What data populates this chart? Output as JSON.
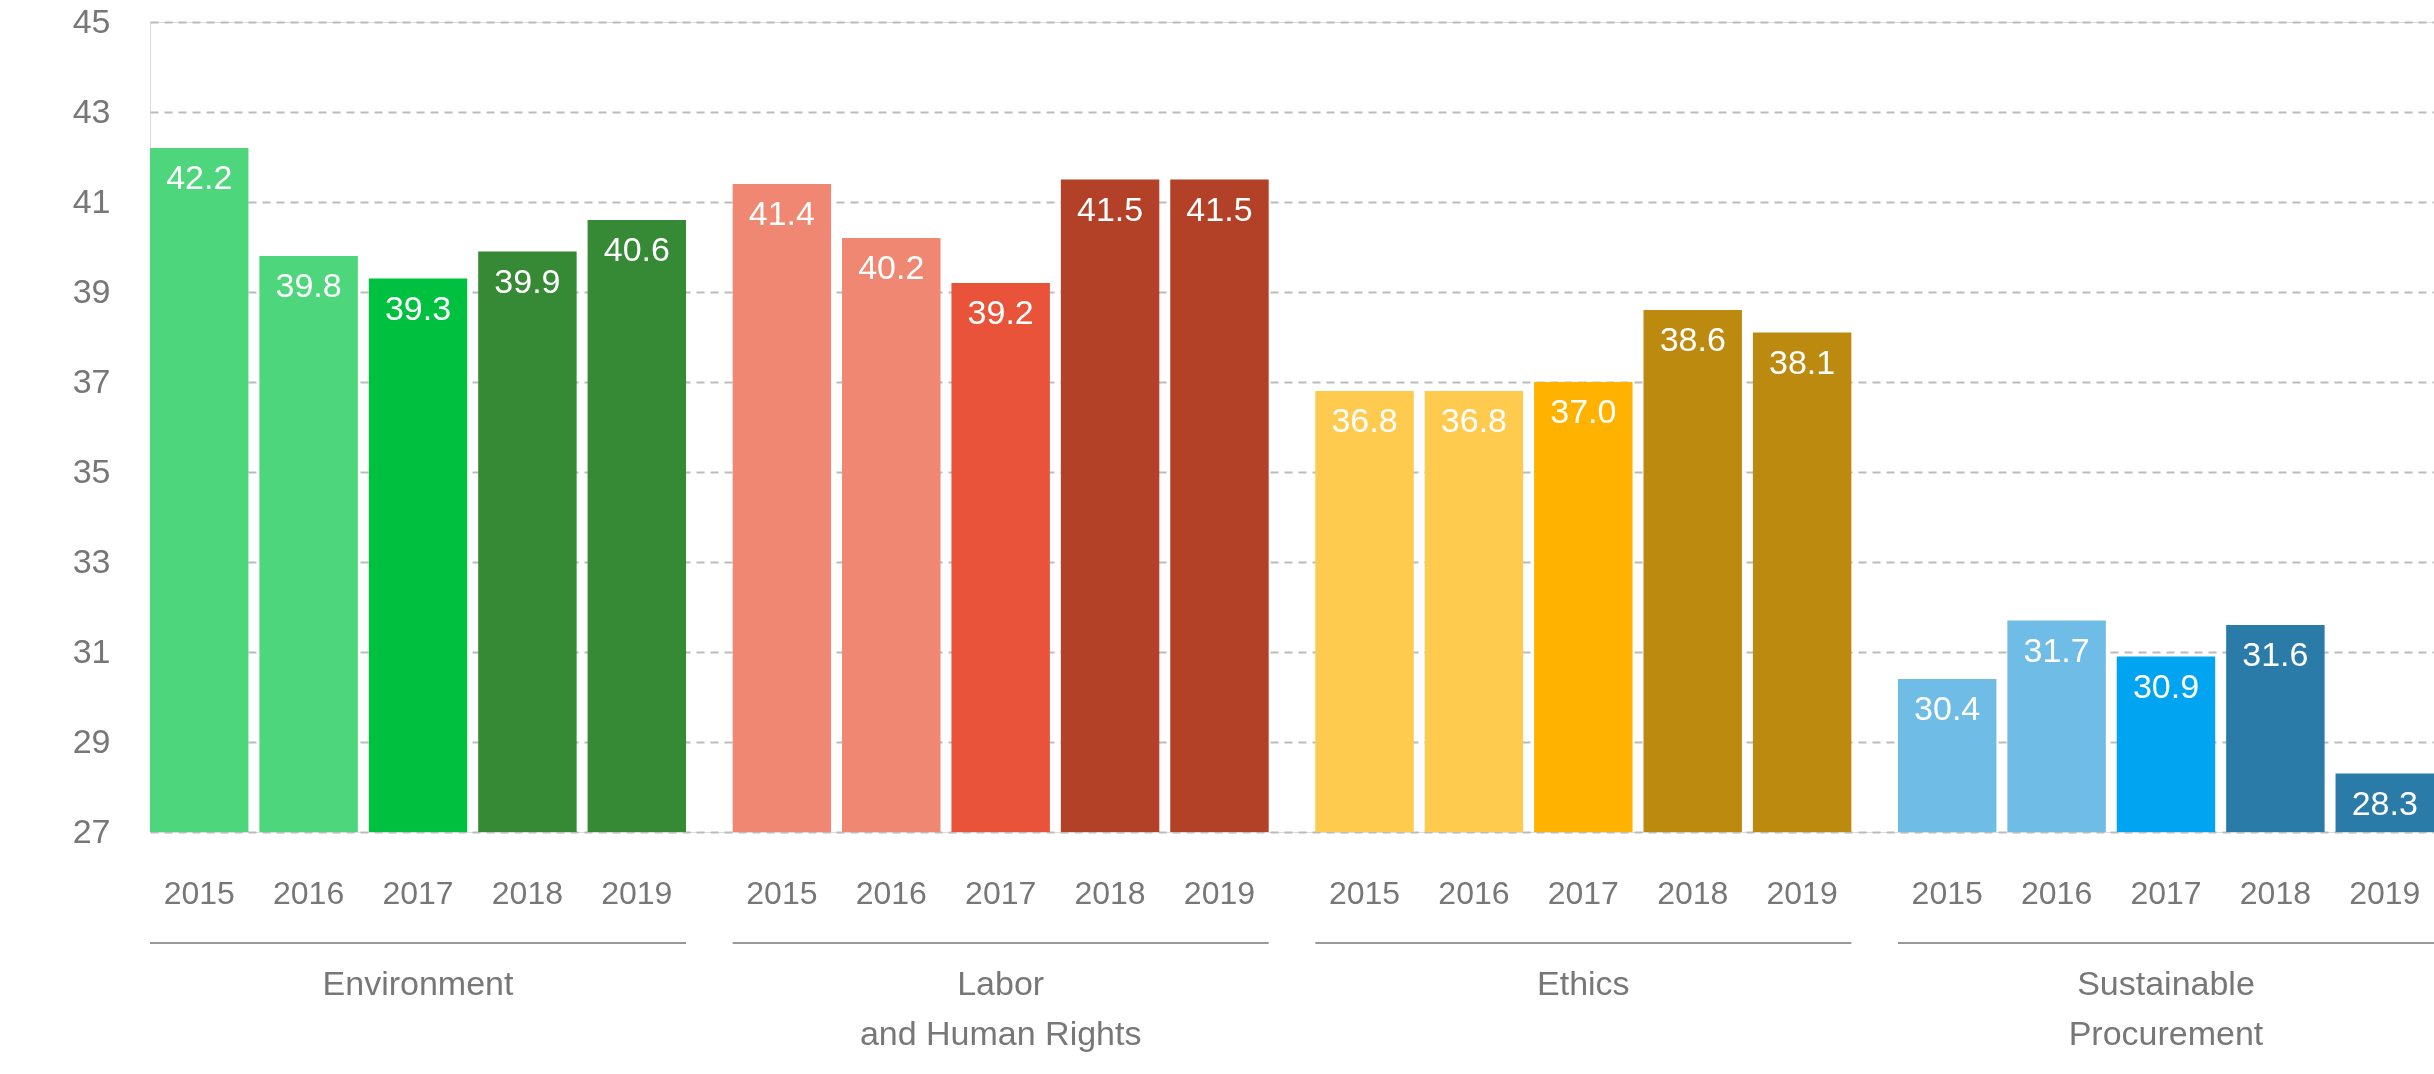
{
  "chart_data": {
    "type": "bar",
    "categories": [
      "2015",
      "2016",
      "2017",
      "2018",
      "2019",
      "2015",
      "2016",
      "2017",
      "2018",
      "2019",
      "2015",
      "2016",
      "2017",
      "2018",
      "2019",
      "2015",
      "2016",
      "2017",
      "2018",
      "2019"
    ],
    "values": [
      42.2,
      39.8,
      39.3,
      39.9,
      40.6,
      41.4,
      40.2,
      39.2,
      41.5,
      41.5,
      36.8,
      36.8,
      37.0,
      38.6,
      38.1,
      30.4,
      31.7,
      30.9,
      31.6,
      28.3
    ],
    "colors": [
      "#4dd67b",
      "#4dd67b",
      "#00c13f",
      "#368a36",
      "#368a36",
      "#ef8772",
      "#ef8772",
      "#e8533a",
      "#b34128",
      "#b34128",
      "#ffcb4f",
      "#ffcb4f",
      "#ffb300",
      "#bd8a10",
      "#bd8a10",
      "#6fbde6",
      "#6fbde6",
      "#00a4f0",
      "#2a7ba8",
      "#2a7ba8"
    ],
    "annotations": [
      "Environment",
      "Labor and Human Rights",
      "Ethics",
      "Sustainable Procurement"
    ],
    "ylim": [
      27,
      45
    ],
    "yticks": [
      27,
      29,
      31,
      33,
      35,
      37,
      39,
      41,
      43,
      45
    ],
    "grid": "y",
    "value_labels": [
      "42.2",
      "39.8",
      "39.3",
      "39.9",
      "40.6",
      "41.4",
      "40.2",
      "39.2",
      "41.5",
      "41.5",
      "36.8",
      "36.8",
      "37.0",
      "38.6",
      "38.1",
      "30.4",
      "31.7",
      "30.9",
      "31.6",
      "28.3"
    ]
  }
}
